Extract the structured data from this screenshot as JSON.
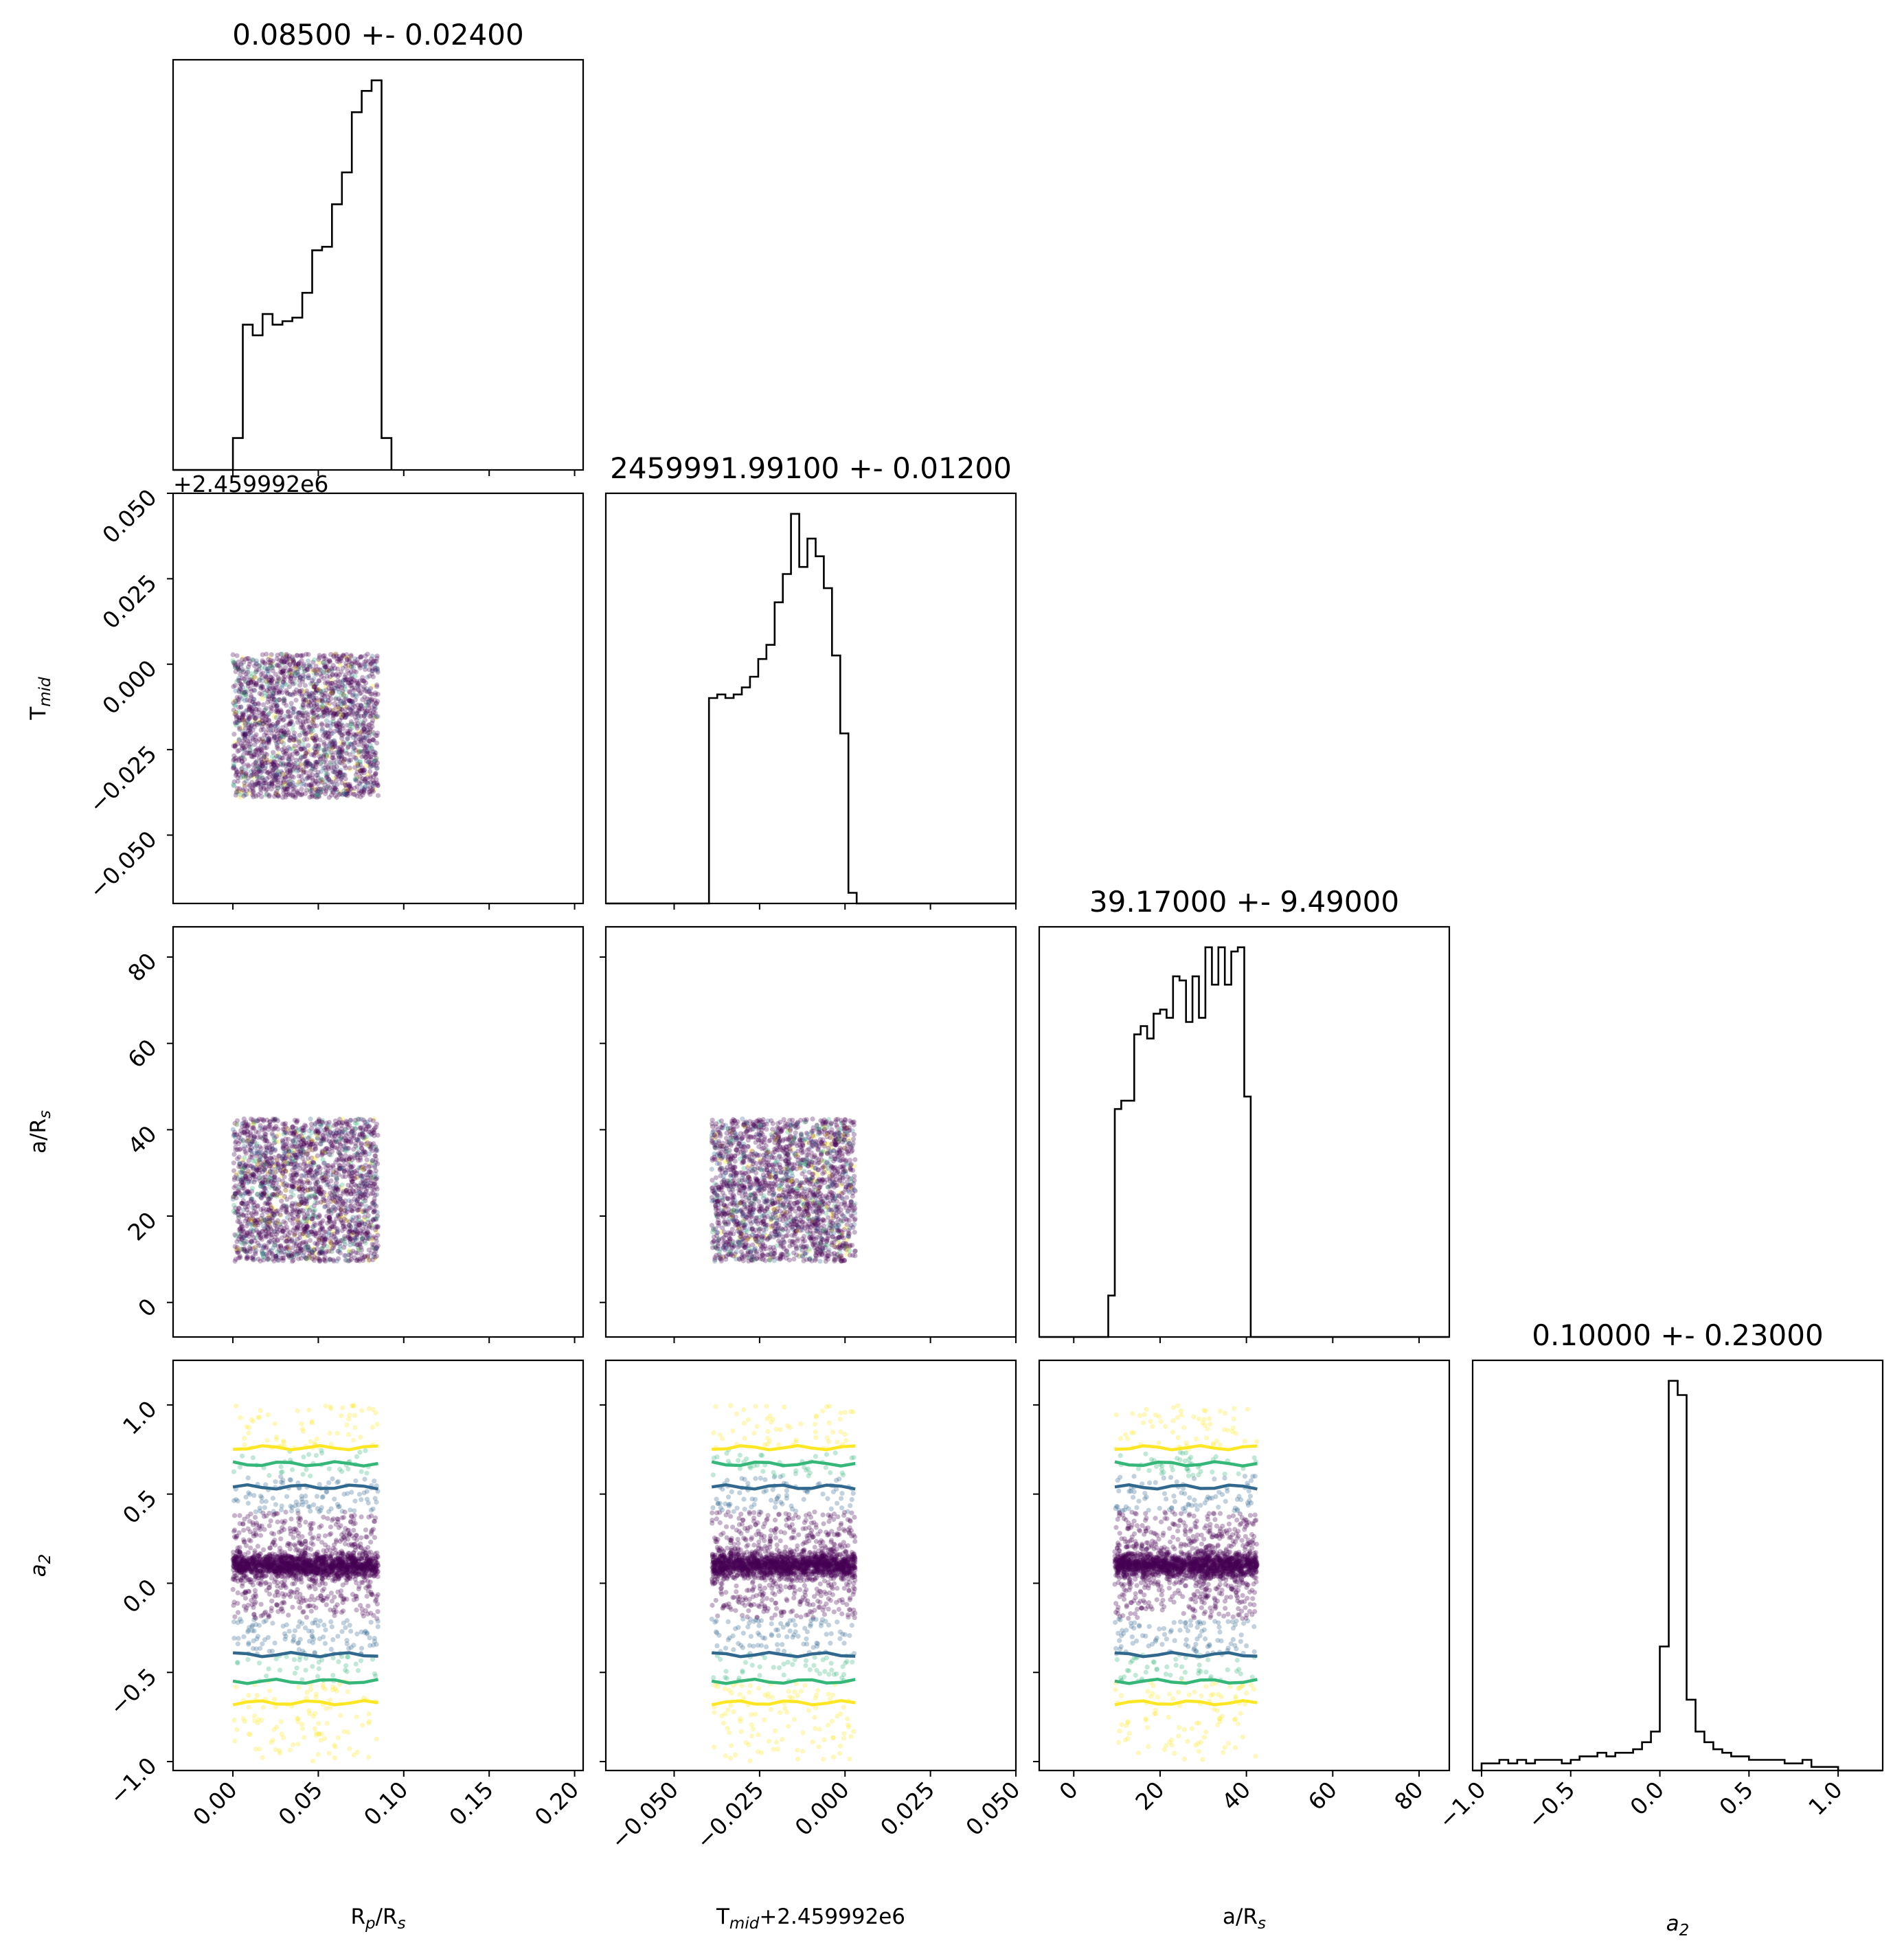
{
  "chart_data": {
    "type": "corner",
    "colormap": [
      "#440154",
      "#31688e",
      "#35b779",
      "#fde725"
    ],
    "params": [
      {
        "label_main": "R",
        "label_sub": "p",
        "label_tail": "/R",
        "label_sub2": "s",
        "summary": "0.08500 +- 0.02400",
        "lim": [
          -0.035,
          0.205
        ],
        "ticks": [
          0.0,
          0.05,
          0.1,
          0.15,
          0.2
        ],
        "tick_labels": [
          "0.00",
          "0.05",
          "0.10",
          "0.15",
          "0.20"
        ],
        "sample_range": [
          0.0,
          0.085
        ],
        "hist_bins": [
          0.0,
          0.0058,
          0.0116,
          0.0174,
          0.0232,
          0.029,
          0.0348,
          0.0406,
          0.0464,
          0.0522,
          0.058,
          0.0638,
          0.0696,
          0.0754,
          0.0812,
          0.087,
          0.0928
        ],
        "hist_counts": [
          9,
          41,
          38,
          44,
          41,
          42,
          43,
          50,
          62,
          63,
          75,
          84,
          101,
          107,
          110,
          9,
          0
        ]
      },
      {
        "label_main": "T",
        "label_sub": "mid",
        "label_tail": "",
        "label_sub2": "",
        "xlabel_suffix": "+2.459992e6",
        "offset_text": "+2.459992e6",
        "summary": "2459991.99100 +- 0.01200",
        "lim": [
          -0.07,
          0.05
        ],
        "ticks": [
          -0.05,
          -0.025,
          0.0,
          0.025,
          0.05
        ],
        "tick_labels": [
          "−0.050",
          "−0.025",
          "0.000",
          "0.025",
          "0.050"
        ],
        "sample_range": [
          -0.039,
          0.003
        ],
        "hist_bins": [
          -0.0398,
          -0.0374,
          -0.035,
          -0.0326,
          -0.0302,
          -0.0278,
          -0.0254,
          -0.023,
          -0.0206,
          -0.0182,
          -0.0158,
          -0.0134,
          -0.011,
          -0.0086,
          -0.0062,
          -0.0038,
          -0.0014,
          0.001,
          0.0034
        ],
        "hist_counts": [
          58,
          59,
          58,
          59,
          61,
          64,
          69,
          73,
          85,
          93,
          110,
          95,
          103,
          98,
          89,
          70,
          48,
          3
        ],
        "hist_range": [
          -0.0398,
          0.0034
        ]
      },
      {
        "label_main": "a/R",
        "label_sub": "s",
        "label_tail": "",
        "label_sub2": "",
        "summary": "39.17000 +- 9.49000",
        "lim": [
          -8,
          87
        ],
        "ticks": [
          0,
          20,
          40,
          60,
          80
        ],
        "tick_labels": [
          "0",
          "20",
          "40",
          "60",
          "80"
        ],
        "sample_range": [
          9.5,
          42.5
        ],
        "hist_bins": [
          8.0,
          9.5,
          11.0,
          12.5,
          14.0,
          15.5,
          17.0,
          18.5,
          20.0,
          21.5,
          23.0,
          24.5,
          26.0,
          27.5,
          29.0,
          30.5,
          32.0,
          33.5,
          35.0,
          36.5,
          38.0,
          39.5,
          41.0,
          42.5
        ],
        "hist_counts": [
          10,
          55,
          57,
          57,
          73,
          75,
          72,
          78,
          79,
          77,
          87,
          86,
          76,
          87,
          77,
          94,
          85,
          94,
          85,
          93,
          94,
          58,
          0
        ]
      },
      {
        "label_main": "a",
        "label_sub": "2",
        "label_tail": "",
        "label_sub2": "",
        "italic": true,
        "summary": "0.10000 +- 0.23000",
        "lim": [
          -1.05,
          1.25
        ],
        "ticks": [
          -1.0,
          -0.5,
          0.0,
          0.5,
          1.0
        ],
        "tick_labels": [
          "−1.0",
          "−0.5",
          "0.0",
          "0.5",
          "1.0"
        ],
        "sample_range": [
          -1.0,
          1.0
        ],
        "hist_bins": [
          -1.0,
          -0.95,
          -0.9,
          -0.85,
          -0.8,
          -0.75,
          -0.7,
          -0.65,
          -0.6,
          -0.55,
          -0.5,
          -0.45,
          -0.4,
          -0.35,
          -0.3,
          -0.25,
          -0.2,
          -0.15,
          -0.1,
          -0.05,
          0.0,
          0.05,
          0.1,
          0.15,
          0.2,
          0.25,
          0.3,
          0.35,
          0.4,
          0.45,
          0.5,
          0.55,
          0.6,
          0.65,
          0.7,
          0.75,
          0.8,
          0.85,
          0.9,
          0.95,
          1.0
        ],
        "hist_counts": [
          2,
          2,
          3,
          2,
          3,
          2,
          3,
          3,
          3,
          2,
          3,
          4,
          4,
          5,
          4,
          5,
          5,
          6,
          8,
          11,
          35,
          110,
          106,
          20,
          11,
          8,
          6,
          5,
          4,
          4,
          3,
          3,
          3,
          3,
          2,
          2,
          3,
          1,
          1,
          1
        ],
        "hist_range": [
          -1.0,
          1.0
        ]
      }
    ],
    "contour_levels_y_a2": [
      0.54,
      -0.4,
      0.67,
      -0.55,
      0.76,
      -0.67
    ],
    "contour_level_colors": [
      "#31688e",
      "#31688e",
      "#35b779",
      "#35b779",
      "#fde725",
      "#fde725"
    ],
    "a2_concentration": 0.1
  }
}
